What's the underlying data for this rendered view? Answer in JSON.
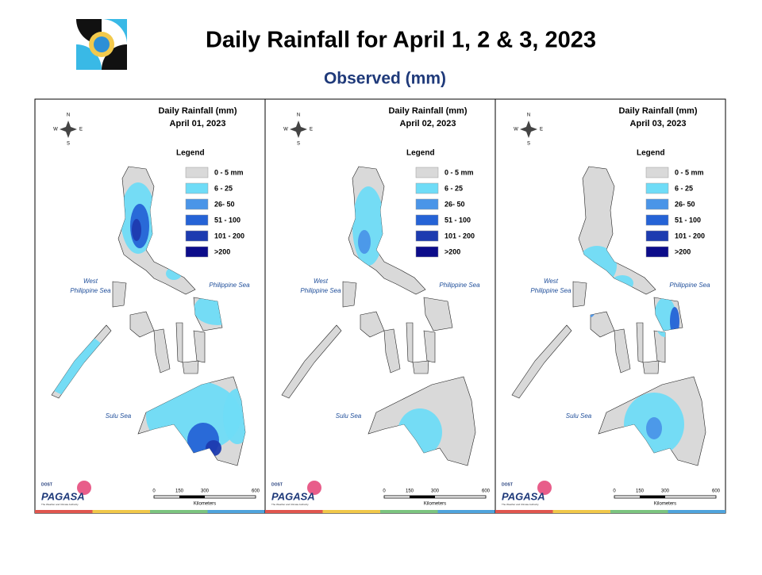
{
  "header": {
    "title": "Daily Rainfall for April 1, 2 & 3, 2023",
    "subtitle": "Observed (mm)"
  },
  "panels": [
    {
      "title": "Daily Rainfall (mm)",
      "date": "April 01, 2023"
    },
    {
      "title": "Daily Rainfall (mm)",
      "date": "April 02, 2023"
    },
    {
      "title": "Daily Rainfall (mm)",
      "date": "April 03, 2023"
    }
  ],
  "legend": {
    "title": "Legend",
    "items": [
      {
        "label": "0 - 5 mm",
        "color": "#d9d9d9"
      },
      {
        "label": "6 - 25",
        "color": "#6fdcf7"
      },
      {
        "label": "26- 50",
        "color": "#4a95e8"
      },
      {
        "label": "51 - 100",
        "color": "#2563d6"
      },
      {
        "label": "101 - 200",
        "color": "#1d3bb0"
      },
      {
        "label": ">200",
        "color": "#0c0c8a"
      }
    ]
  },
  "seas": [
    {
      "lines": [
        "West",
        "Philippine Sea"
      ]
    },
    {
      "lines": [
        "Philippine Sea"
      ]
    },
    {
      "lines": [
        "Sulu Sea"
      ]
    }
  ],
  "compass": {
    "n": "N",
    "e": "E",
    "s": "S",
    "w": "W"
  },
  "scale_bar": {
    "ticks": [
      0,
      150,
      300,
      600
    ],
    "unit": "Kilometers"
  },
  "branding": {
    "agency": "PAGASA",
    "dost": "DOST",
    "tagline": "The Weather and Climate Authority"
  }
}
